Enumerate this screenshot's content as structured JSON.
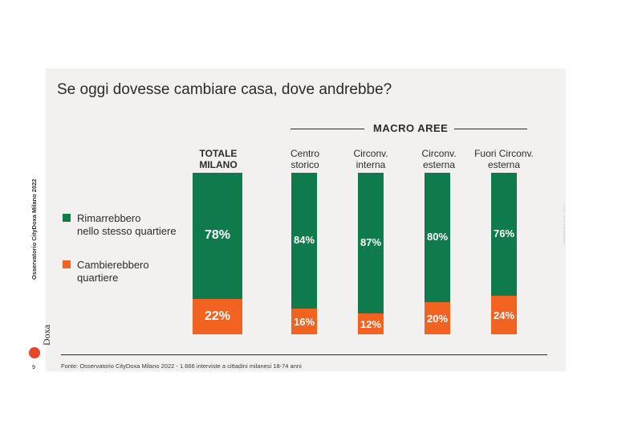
{
  "chart_data": {
    "type": "bar",
    "stacked": true,
    "title": "Se oggi dovesse cambiare casa, dove andrebbe?",
    "group_label": "MACRO AREE",
    "categories": [
      {
        "line1": "TOTALE",
        "line2": "MILANO"
      },
      {
        "line1": "Centro",
        "line2": "storico"
      },
      {
        "line1": "Circonv.",
        "line2": "interna"
      },
      {
        "line1": "Circonv.",
        "line2": "esterna"
      },
      {
        "line1": "Fuori Circonv.",
        "line2": "esterna"
      }
    ],
    "series": [
      {
        "name_line1": "Rimarrebbero",
        "name_line2": "nello stesso quartiere",
        "color": "#0f7a4c",
        "values": [
          78,
          84,
          87,
          80,
          76
        ],
        "labels": [
          "78%",
          "84%",
          "87%",
          "80%",
          "76%"
        ]
      },
      {
        "name_line1": "Cambierebbero",
        "name_line2": "quartiere",
        "color": "#f26322",
        "values": [
          22,
          16,
          12,
          20,
          24
        ],
        "labels": [
          "22%",
          "16%",
          "12%",
          "20%",
          "24%"
        ]
      }
    ],
    "ylim": [
      0,
      100
    ]
  },
  "footer": "Fonte: Osservatorio CityDoxa Milano 2022 - 1.666 interviste a cittadini milanesi 18-74 anni",
  "side_label": "Osservatorio CityDoxa Milano 2022",
  "logo_text": "Doxa",
  "logo_mark": "BVA",
  "page_number": "9",
  "copyright": "Copyright BVA Doxa - 2022"
}
